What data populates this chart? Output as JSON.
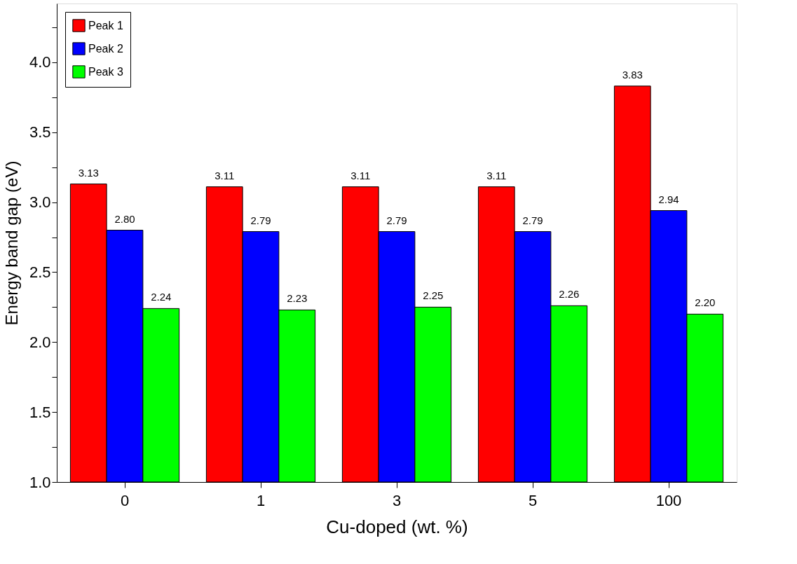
{
  "chart_data": {
    "type": "bar",
    "xlabel": "Cu-doped (wt. %)",
    "ylabel": "Energy band gap (eV)",
    "categories": [
      "0",
      "1",
      "3",
      "5",
      "100"
    ],
    "series": [
      {
        "name": "Peak 1",
        "color": "#ff0000",
        "values": [
          3.13,
          3.11,
          3.11,
          3.11,
          3.83
        ],
        "value_labels": [
          "3.13",
          "3.11",
          "3.11",
          "3.11",
          "3.83"
        ]
      },
      {
        "name": "Peak 2",
        "color": "#0000ff",
        "values": [
          2.8,
          2.79,
          2.79,
          2.79,
          2.94
        ],
        "value_labels": [
          "2.80",
          "2.79",
          "2.79",
          "2.79",
          "2.94"
        ]
      },
      {
        "name": "Peak 3",
        "color": "#00ff00",
        "values": [
          2.24,
          2.23,
          2.25,
          2.26,
          2.2
        ],
        "value_labels": [
          "2.24",
          "2.23",
          "2.25",
          "2.26",
          "2.20"
        ]
      }
    ],
    "ylim": [
      1.0,
      4.42
    ],
    "yticks": [
      {
        "value": 1.0,
        "label": "1.0"
      },
      {
        "value": 1.25,
        "label": null
      },
      {
        "value": 1.5,
        "label": "1.5"
      },
      {
        "value": 1.75,
        "label": null
      },
      {
        "value": 2.0,
        "label": "2.0"
      },
      {
        "value": 2.25,
        "label": null
      },
      {
        "value": 2.5,
        "label": "2.5"
      },
      {
        "value": 2.75,
        "label": null
      },
      {
        "value": 3.0,
        "label": "3.0"
      },
      {
        "value": 3.25,
        "label": null
      },
      {
        "value": 3.5,
        "label": "3.5"
      },
      {
        "value": 3.75,
        "label": null
      },
      {
        "value": 4.0,
        "label": "4.0"
      },
      {
        "value": 4.25,
        "label": null
      }
    ],
    "grid": false,
    "legend": "top left"
  }
}
